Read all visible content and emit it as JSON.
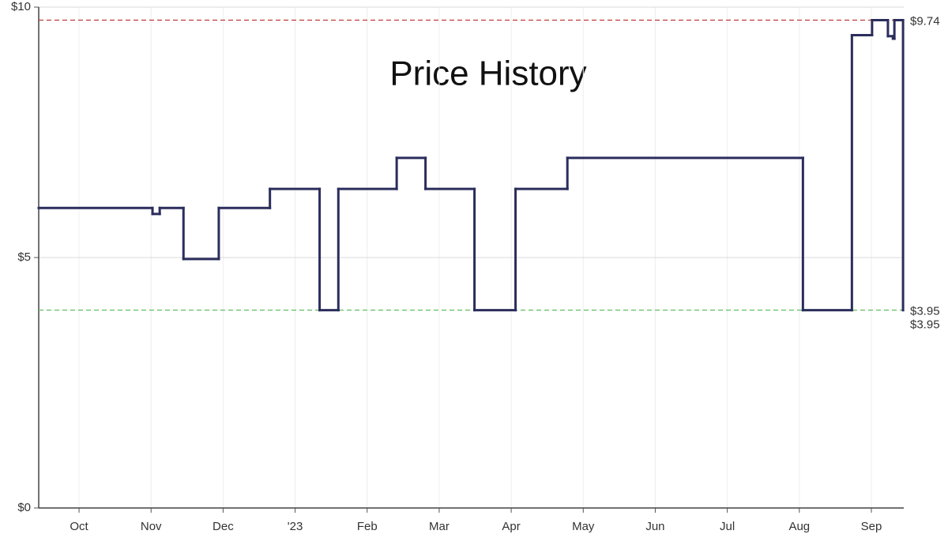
{
  "chart_data": {
    "type": "step",
    "title": "Price History",
    "xlim": [
      9.44,
      21.45
    ],
    "xticks": [
      {
        "value": 10,
        "label": "Oct"
      },
      {
        "value": 11,
        "label": "Nov"
      },
      {
        "value": 12,
        "label": "Dec"
      },
      {
        "value": 13,
        "label": "'23"
      },
      {
        "value": 14,
        "label": "Feb"
      },
      {
        "value": 15,
        "label": "Mar"
      },
      {
        "value": 16,
        "label": "Apr"
      },
      {
        "value": 17,
        "label": "May"
      },
      {
        "value": 18,
        "label": "Jun"
      },
      {
        "value": 19,
        "label": "Jul"
      },
      {
        "value": 20,
        "label": "Aug"
      },
      {
        "value": 21,
        "label": "Sep"
      }
    ],
    "ylim": [
      0,
      10
    ],
    "yticks": [
      {
        "value": 0,
        "label": "$0"
      },
      {
        "value": 5,
        "label": "$5"
      },
      {
        "value": 10,
        "label": "$10"
      }
    ],
    "grid": true,
    "x": [
      9.44,
      11.02,
      11.12,
      11.45,
      11.94,
      12.65,
      13.34,
      13.6,
      14.41,
      14.81,
      15.49,
      16.06,
      16.78,
      20.05,
      20.73,
      21.01,
      21.23,
      21.3,
      21.32,
      21.44
    ],
    "series": [
      {
        "color": "#2b2d5c",
        "values": [
          5.99,
          5.87,
          5.99,
          4.97,
          5.99,
          6.37,
          3.95,
          6.37,
          6.99,
          6.37,
          3.95,
          6.37,
          6.99,
          3.95,
          9.44,
          9.74,
          9.42,
          9.37,
          9.74,
          3.95
        ]
      }
    ],
    "reference_lines": [
      {
        "value": 9.74,
        "label": "$9.74",
        "color": "#c0393b"
      },
      {
        "value": 3.95,
        "label": "$3.95",
        "color": "#6cc16c"
      }
    ],
    "current_label": {
      "value": 3.95,
      "label": "$3.95",
      "color": "#2b2d5c"
    }
  }
}
